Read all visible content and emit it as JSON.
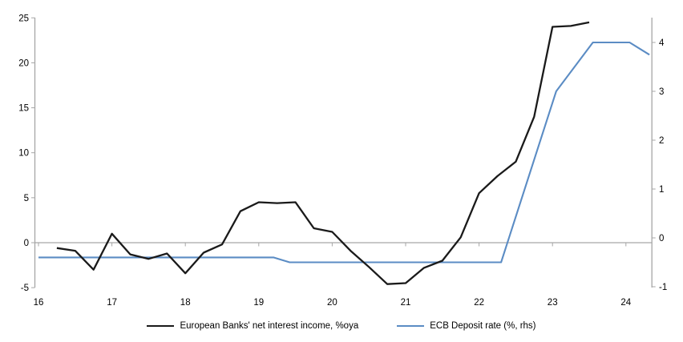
{
  "chart_data": {
    "type": "line",
    "title": "",
    "xlabel": "",
    "x_ticks": [
      16,
      17,
      18,
      19,
      20,
      21,
      22,
      23,
      24
    ],
    "x_range": [
      16,
      24.35
    ],
    "left_axis": {
      "label": "",
      "ticks": [
        25,
        20,
        15,
        10,
        5,
        0,
        -5
      ],
      "range": [
        -5,
        25.1
      ]
    },
    "right_axis": {
      "label": "",
      "ticks": [
        4,
        3,
        2,
        1,
        0,
        -1
      ],
      "range": [
        -1,
        4.51
      ]
    },
    "grid": "zero-baseline-only",
    "legend_position": "bottom-center",
    "axis_color": "#a6a6a6",
    "series": [
      {
        "name": "European Banks' net interest income, %oya",
        "axis": "left",
        "color": "#1a1a1a",
        "frequency": "quarterly",
        "points": [
          [
            16.25,
            -0.6
          ],
          [
            16.5,
            -0.9
          ],
          [
            16.75,
            -3.0
          ],
          [
            17.0,
            1.0
          ],
          [
            17.25,
            -1.3
          ],
          [
            17.5,
            -1.8
          ],
          [
            17.75,
            -1.2
          ],
          [
            18.0,
            -3.4
          ],
          [
            18.25,
            -1.1
          ],
          [
            18.5,
            -0.2
          ],
          [
            18.75,
            3.5
          ],
          [
            19.0,
            4.5
          ],
          [
            19.25,
            4.4
          ],
          [
            19.5,
            4.5
          ],
          [
            19.75,
            1.6
          ],
          [
            20.0,
            1.2
          ],
          [
            20.25,
            -0.9
          ],
          [
            20.5,
            -2.7
          ],
          [
            20.75,
            -4.6
          ],
          [
            21.0,
            -4.5
          ],
          [
            21.25,
            -2.8
          ],
          [
            21.5,
            -2.0
          ],
          [
            21.75,
            0.6
          ],
          [
            22.0,
            5.5
          ],
          [
            22.25,
            7.4
          ],
          [
            22.5,
            9.0
          ],
          [
            22.75,
            14.0
          ],
          [
            23.0,
            24.0
          ],
          [
            23.25,
            24.1
          ],
          [
            23.5,
            24.5
          ]
        ]
      },
      {
        "name": "ECB Deposit rate (%, rhs)",
        "axis": "right",
        "color": "#5b8cc4",
        "frequency": "monthly",
        "points": [
          [
            16.0,
            -0.4
          ],
          [
            19.2,
            -0.4
          ],
          [
            19.42,
            -0.5
          ],
          [
            22.3,
            -0.5
          ],
          [
            23.05,
            3.0
          ],
          [
            23.55,
            4.0
          ],
          [
            24.05,
            4.0
          ],
          [
            24.32,
            3.75
          ]
        ]
      }
    ]
  }
}
